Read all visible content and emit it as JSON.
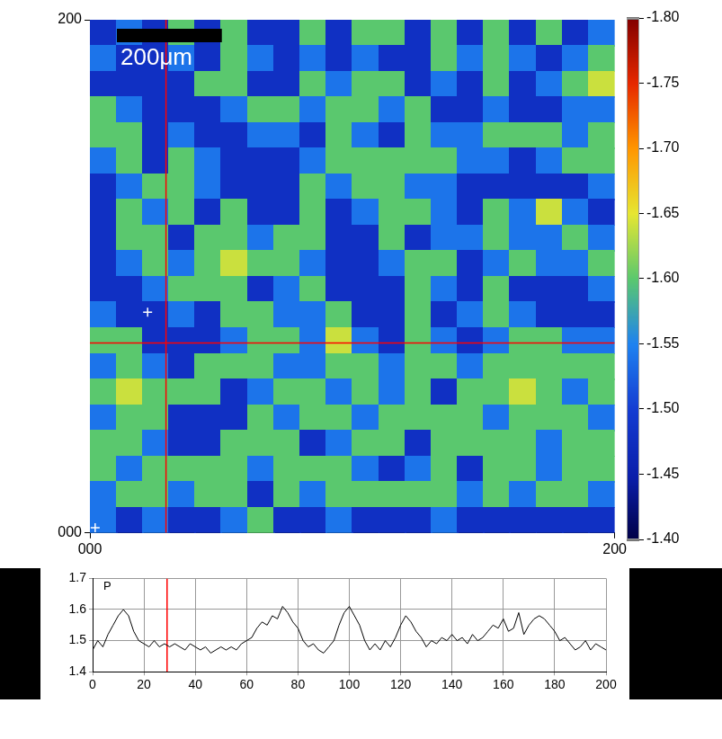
{
  "chart_data": [
    {
      "type": "heatmap",
      "xlim": [
        0,
        200
      ],
      "ylim": [
        0,
        200
      ],
      "xticks": [
        {
          "value": 0,
          "label": "000"
        },
        200
      ],
      "yticks": [
        {
          "value": 0,
          "label": "000"
        },
        200
      ],
      "cells": [
        [
          -1.48,
          -1.54,
          -1.48,
          -1.6,
          -1.48,
          -1.6,
          -1.48,
          -1.48,
          -1.6,
          -1.48,
          -1.6,
          -1.6,
          -1.48,
          -1.6,
          -1.48,
          -1.6,
          -1.48,
          -1.6,
          -1.48,
          -1.54
        ],
        [
          -1.54,
          -1.48,
          -1.48,
          -1.54,
          -1.48,
          -1.6,
          -1.54,
          -1.48,
          -1.54,
          -1.48,
          -1.54,
          -1.48,
          -1.48,
          -1.6,
          -1.54,
          -1.6,
          -1.54,
          -1.48,
          -1.54,
          -1.6
        ],
        [
          -1.48,
          -1.48,
          -1.48,
          -1.48,
          -1.6,
          -1.6,
          -1.48,
          -1.48,
          -1.6,
          -1.54,
          -1.6,
          -1.6,
          -1.48,
          -1.54,
          -1.48,
          -1.6,
          -1.48,
          -1.54,
          -1.6,
          -1.64
        ],
        [
          -1.6,
          -1.54,
          -1.48,
          -1.48,
          -1.48,
          -1.54,
          -1.6,
          -1.6,
          -1.54,
          -1.6,
          -1.6,
          -1.54,
          -1.6,
          -1.48,
          -1.48,
          -1.54,
          -1.48,
          -1.48,
          -1.54,
          -1.54
        ],
        [
          -1.6,
          -1.6,
          -1.48,
          -1.54,
          -1.48,
          -1.48,
          -1.54,
          -1.54,
          -1.48,
          -1.6,
          -1.54,
          -1.48,
          -1.6,
          -1.54,
          -1.54,
          -1.6,
          -1.6,
          -1.6,
          -1.54,
          -1.6
        ],
        [
          -1.54,
          -1.6,
          -1.48,
          -1.6,
          -1.54,
          -1.48,
          -1.48,
          -1.48,
          -1.54,
          -1.6,
          -1.6,
          -1.6,
          -1.6,
          -1.6,
          -1.54,
          -1.54,
          -1.48,
          -1.54,
          -1.6,
          -1.6
        ],
        [
          -1.48,
          -1.54,
          -1.6,
          -1.6,
          -1.54,
          -1.48,
          -1.48,
          -1.48,
          -1.6,
          -1.54,
          -1.6,
          -1.6,
          -1.54,
          -1.54,
          -1.48,
          -1.48,
          -1.48,
          -1.48,
          -1.48,
          -1.54
        ],
        [
          -1.48,
          -1.6,
          -1.54,
          -1.6,
          -1.48,
          -1.6,
          -1.48,
          -1.48,
          -1.6,
          -1.48,
          -1.54,
          -1.6,
          -1.6,
          -1.54,
          -1.48,
          -1.6,
          -1.54,
          -1.64,
          -1.54,
          -1.48
        ],
        [
          -1.48,
          -1.6,
          -1.6,
          -1.48,
          -1.6,
          -1.6,
          -1.54,
          -1.6,
          -1.6,
          -1.48,
          -1.48,
          -1.6,
          -1.48,
          -1.54,
          -1.54,
          -1.6,
          -1.54,
          -1.54,
          -1.6,
          -1.54
        ],
        [
          -1.48,
          -1.54,
          -1.6,
          -1.54,
          -1.6,
          -1.64,
          -1.6,
          -1.6,
          -1.54,
          -1.48,
          -1.48,
          -1.54,
          -1.6,
          -1.6,
          -1.48,
          -1.54,
          -1.6,
          -1.54,
          -1.54,
          -1.6
        ],
        [
          -1.48,
          -1.48,
          -1.54,
          -1.6,
          -1.6,
          -1.6,
          -1.48,
          -1.54,
          -1.6,
          -1.48,
          -1.48,
          -1.48,
          -1.6,
          -1.54,
          -1.48,
          -1.6,
          -1.48,
          -1.48,
          -1.48,
          -1.54
        ],
        [
          -1.54,
          -1.48,
          -1.48,
          -1.54,
          -1.48,
          -1.6,
          -1.6,
          -1.54,
          -1.54,
          -1.6,
          -1.48,
          -1.48,
          -1.6,
          -1.48,
          -1.54,
          -1.6,
          -1.54,
          -1.48,
          -1.48,
          -1.48
        ],
        [
          -1.6,
          -1.6,
          -1.48,
          -1.48,
          -1.48,
          -1.54,
          -1.6,
          -1.6,
          -1.54,
          -1.64,
          -1.54,
          -1.48,
          -1.6,
          -1.54,
          -1.48,
          -1.54,
          -1.6,
          -1.6,
          -1.54,
          -1.54
        ],
        [
          -1.54,
          -1.6,
          -1.54,
          -1.48,
          -1.6,
          -1.6,
          -1.6,
          -1.54,
          -1.54,
          -1.6,
          -1.6,
          -1.54,
          -1.6,
          -1.6,
          -1.54,
          -1.6,
          -1.6,
          -1.6,
          -1.6,
          -1.6
        ],
        [
          -1.6,
          -1.64,
          -1.6,
          -1.6,
          -1.6,
          -1.48,
          -1.54,
          -1.6,
          -1.6,
          -1.54,
          -1.6,
          -1.54,
          -1.6,
          -1.48,
          -1.6,
          -1.6,
          -1.64,
          -1.6,
          -1.54,
          -1.6
        ],
        [
          -1.54,
          -1.6,
          -1.6,
          -1.48,
          -1.48,
          -1.48,
          -1.6,
          -1.54,
          -1.6,
          -1.6,
          -1.54,
          -1.6,
          -1.6,
          -1.6,
          -1.6,
          -1.54,
          -1.6,
          -1.6,
          -1.6,
          -1.54
        ],
        [
          -1.6,
          -1.6,
          -1.54,
          -1.48,
          -1.48,
          -1.6,
          -1.6,
          -1.6,
          -1.48,
          -1.54,
          -1.6,
          -1.6,
          -1.48,
          -1.6,
          -1.6,
          -1.6,
          -1.6,
          -1.54,
          -1.6,
          -1.6
        ],
        [
          -1.6,
          -1.54,
          -1.6,
          -1.6,
          -1.6,
          -1.6,
          -1.54,
          -1.6,
          -1.6,
          -1.6,
          -1.54,
          -1.48,
          -1.54,
          -1.6,
          -1.48,
          -1.6,
          -1.6,
          -1.54,
          -1.6,
          -1.6
        ],
        [
          -1.54,
          -1.6,
          -1.6,
          -1.54,
          -1.6,
          -1.6,
          -1.48,
          -1.6,
          -1.54,
          -1.6,
          -1.6,
          -1.6,
          -1.6,
          -1.6,
          -1.54,
          -1.6,
          -1.54,
          -1.6,
          -1.6,
          -1.54
        ],
        [
          -1.54,
          -1.48,
          -1.54,
          -1.48,
          -1.48,
          -1.54,
          -1.6,
          -1.48,
          -1.48,
          -1.54,
          -1.48,
          -1.48,
          -1.48,
          -1.54,
          -1.48,
          -1.48,
          -1.48,
          -1.48,
          -1.48,
          -1.48
        ]
      ],
      "colorbar": {
        "lim": [
          -1.8,
          -1.4
        ],
        "ticks": [
          {
            "value": -1.8,
            "label": "-1.80"
          },
          {
            "value": -1.75,
            "label": "-1.75"
          },
          {
            "value": -1.7,
            "label": "-1.70"
          },
          {
            "value": -1.65,
            "label": "-1.65"
          },
          {
            "value": -1.6,
            "label": "-1.60"
          },
          {
            "value": -1.55,
            "label": "-1.55"
          },
          {
            "value": -1.5,
            "label": "-1.50"
          },
          {
            "value": -1.45,
            "label": "-1.45"
          },
          {
            "value": -1.4,
            "label": "-1.40"
          }
        ]
      },
      "cursor": {
        "x": 29,
        "y": 74,
        "color": "#ff0000"
      },
      "points": {
        "x": [
          22,
          2
        ],
        "y": [
          86,
          2
        ],
        "marker": "plus",
        "color": "#ffffff"
      },
      "scale_bar": {
        "label": "200μm",
        "length": 40
      }
    },
    {
      "type": "line",
      "title": "P",
      "x": [
        0,
        2,
        4,
        6,
        8,
        10,
        12,
        14,
        16,
        18,
        20,
        22,
        24,
        26,
        28,
        30,
        32,
        34,
        36,
        38,
        40,
        42,
        44,
        46,
        48,
        50,
        52,
        54,
        56,
        58,
        60,
        62,
        64,
        66,
        68,
        70,
        72,
        74,
        76,
        78,
        80,
        82,
        84,
        86,
        88,
        90,
        92,
        94,
        96,
        98,
        100,
        102,
        104,
        106,
        108,
        110,
        112,
        114,
        116,
        118,
        120,
        122,
        124,
        126,
        128,
        130,
        132,
        134,
        136,
        138,
        140,
        142,
        144,
        146,
        148,
        150,
        152,
        154,
        156,
        158,
        160,
        162,
        164,
        166,
        168,
        170,
        172,
        174,
        176,
        178,
        180,
        182,
        184,
        186,
        188,
        190,
        192,
        194,
        196,
        198,
        200
      ],
      "values": [
        1.47,
        1.5,
        1.48,
        1.52,
        1.55,
        1.58,
        1.6,
        1.58,
        1.53,
        1.5,
        1.49,
        1.48,
        1.5,
        1.48,
        1.49,
        1.48,
        1.49,
        1.48,
        1.47,
        1.49,
        1.48,
        1.47,
        1.48,
        1.46,
        1.47,
        1.48,
        1.47,
        1.48,
        1.47,
        1.49,
        1.5,
        1.51,
        1.54,
        1.56,
        1.55,
        1.58,
        1.57,
        1.61,
        1.59,
        1.56,
        1.54,
        1.5,
        1.48,
        1.49,
        1.47,
        1.46,
        1.48,
        1.5,
        1.55,
        1.59,
        1.61,
        1.58,
        1.55,
        1.5,
        1.47,
        1.49,
        1.47,
        1.5,
        1.48,
        1.51,
        1.55,
        1.58,
        1.56,
        1.53,
        1.51,
        1.48,
        1.5,
        1.49,
        1.51,
        1.5,
        1.52,
        1.5,
        1.51,
        1.49,
        1.52,
        1.5,
        1.51,
        1.53,
        1.55,
        1.54,
        1.57,
        1.53,
        1.54,
        1.59,
        1.52,
        1.55,
        1.57,
        1.58,
        1.57,
        1.55,
        1.53,
        1.5,
        1.51,
        1.49,
        1.47,
        1.48,
        1.5,
        1.47,
        1.49,
        1.48,
        1.47
      ],
      "color": "#000000",
      "xlim": [
        0,
        200
      ],
      "xticks": [
        0,
        20,
        40,
        60,
        80,
        100,
        120,
        140,
        160,
        180,
        200
      ],
      "ylim": [
        1.4,
        1.7
      ],
      "yticks": [
        1.4,
        1.5,
        1.6,
        1.7
      ],
      "grid": true,
      "cursor": {
        "x": 29,
        "color": "#ff0000"
      }
    }
  ]
}
